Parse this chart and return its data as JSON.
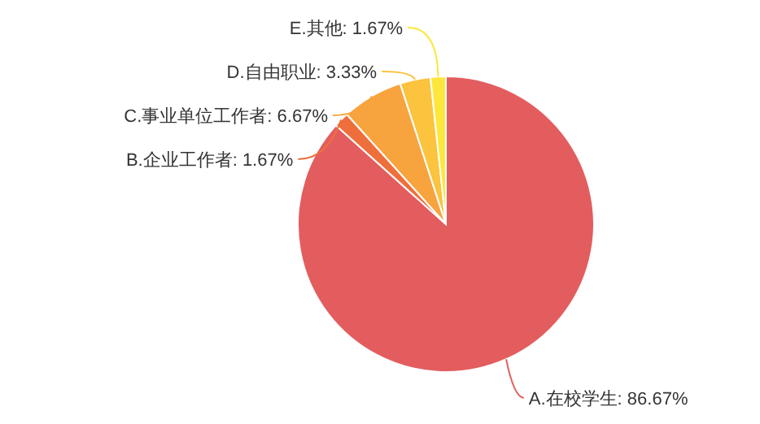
{
  "chart_data": {
    "type": "pie",
    "categories": [
      "A.在校学生",
      "B.企业工作者",
      "C.事业单位工作者",
      "D.自由职业",
      "E.其他"
    ],
    "values": [
      86.67,
      1.67,
      6.67,
      3.33,
      1.67
    ],
    "value_labels": [
      "86.67%",
      "1.67%",
      "6.67%",
      "3.33%",
      "1.67%"
    ],
    "colors": [
      "#e35d5e",
      "#ef6f3c",
      "#f7a43f",
      "#fbc33e",
      "#fde73c"
    ]
  }
}
